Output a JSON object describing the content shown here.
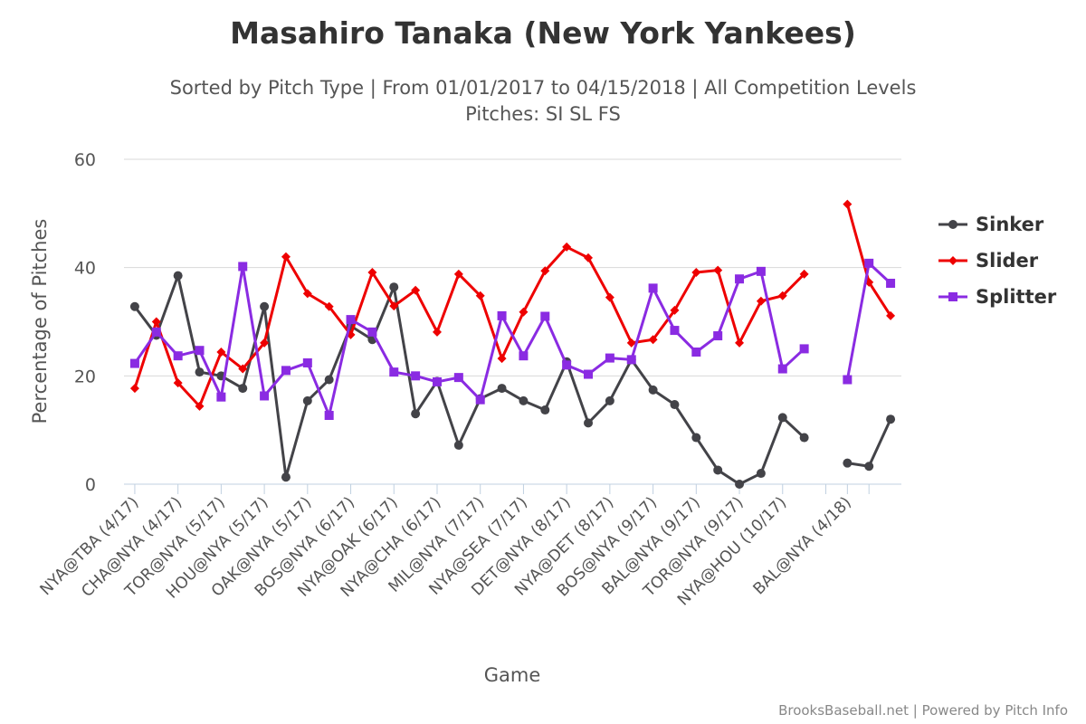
{
  "chart_data": {
    "type": "line",
    "title": "Masahiro Tanaka (New York Yankees)",
    "subtitle_line1": "Sorted by Pitch Type | From 01/01/2017 to 04/15/2018 | All Competition Levels",
    "subtitle_line2": "Pitches: SI SL FS",
    "xlabel": "Game",
    "ylabel": "Percentage of Pitches",
    "ylim": [
      0,
      60
    ],
    "yticks": [
      "0",
      "20",
      "40",
      "60"
    ],
    "grid": true,
    "legend_position": "right",
    "x_count": 36,
    "tick_labels": [
      {
        "index": 0,
        "label": "NYA@TBA (4/17)"
      },
      {
        "index": 2,
        "label": "CHA@NYA (4/17)"
      },
      {
        "index": 4,
        "label": "TOR@NYA (5/17)"
      },
      {
        "index": 6,
        "label": "HOU@NYA (5/17)"
      },
      {
        "index": 8,
        "label": "OAK@NYA (5/17)"
      },
      {
        "index": 10,
        "label": "BOS@NYA (6/17)"
      },
      {
        "index": 12,
        "label": "NYA@OAK (6/17)"
      },
      {
        "index": 14,
        "label": "NYA@CHA (6/17)"
      },
      {
        "index": 16,
        "label": "MIL@NYA (7/17)"
      },
      {
        "index": 18,
        "label": "NYA@SEA (7/17)"
      },
      {
        "index": 20,
        "label": "DET@NYA (8/17)"
      },
      {
        "index": 22,
        "label": "NYA@DET (8/17)"
      },
      {
        "index": 24,
        "label": "BOS@NYA (9/17)"
      },
      {
        "index": 26,
        "label": "BAL@NYA (9/17)"
      },
      {
        "index": 28,
        "label": "TOR@NYA (9/17)"
      },
      {
        "index": 30,
        "label": "NYA@HOU (10/17)"
      },
      {
        "index": 33,
        "label": "BAL@NYA (4/18)"
      }
    ],
    "series": [
      {
        "name": "Sinker",
        "color": "#434348",
        "marker": "circle",
        "values": [
          32.8,
          27.5,
          38.5,
          20.7,
          20.0,
          17.7,
          32.8,
          1.3,
          15.4,
          19.3,
          29.2,
          26.7,
          36.4,
          13.0,
          19.0,
          7.2,
          15.8,
          17.7,
          15.4,
          13.7,
          22.6,
          11.3,
          15.4,
          23.0,
          17.4,
          14.7,
          8.6,
          2.6,
          0.0,
          2.0,
          12.3,
          8.6,
          null,
          3.9,
          3.3,
          12.0
        ]
      },
      {
        "name": "Slider",
        "color": "#ee0000",
        "marker": "diamond",
        "values": [
          17.7,
          30.0,
          18.7,
          14.4,
          24.4,
          21.3,
          26.1,
          42.0,
          35.2,
          32.8,
          27.6,
          39.1,
          32.9,
          35.8,
          28.1,
          38.8,
          34.8,
          23.2,
          31.8,
          39.4,
          43.8,
          41.8,
          34.5,
          26.1,
          26.7,
          32.1,
          39.1,
          39.5,
          26.1,
          33.8,
          34.8,
          38.8,
          null,
          51.7,
          37.3,
          31.1
        ]
      },
      {
        "name": "Splitter",
        "color": "#8a2be2",
        "marker": "square",
        "values": [
          22.3,
          28.1,
          23.7,
          24.7,
          16.1,
          40.2,
          16.3,
          21.0,
          22.4,
          12.7,
          30.4,
          28.1,
          20.7,
          20.0,
          18.9,
          19.7,
          15.6,
          31.1,
          23.7,
          31.0,
          22.0,
          20.3,
          23.3,
          23.0,
          36.2,
          28.4,
          24.4,
          27.4,
          37.9,
          39.3,
          21.3,
          25.0,
          null,
          19.3,
          40.8,
          37.1
        ]
      }
    ]
  },
  "credits": "BrooksBaseball.net | Powered by Pitch Info"
}
